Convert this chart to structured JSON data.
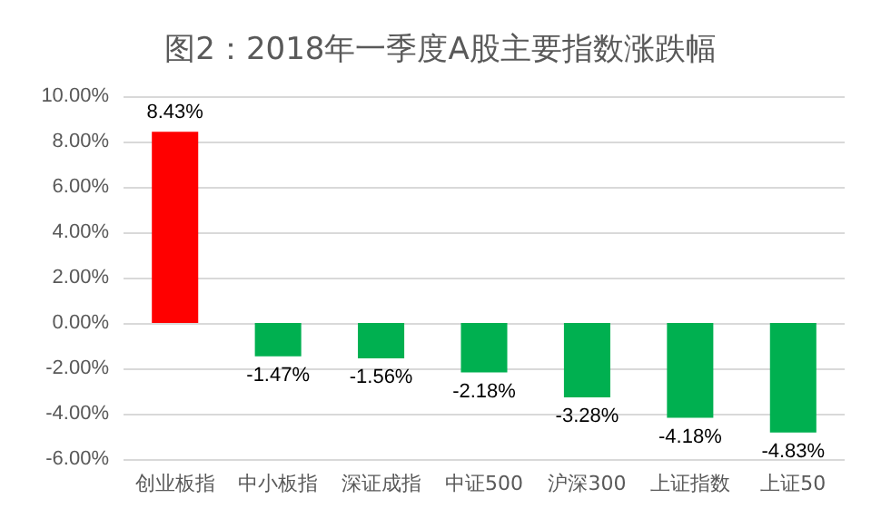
{
  "chart_data": {
    "type": "bar",
    "title": "图2：2018年一季度A股主要指数涨跌幅",
    "categories": [
      "创业板指",
      "中小板指",
      "深证成指",
      "中证500",
      "沪深300",
      "上证指数",
      "上证50"
    ],
    "values": [
      8.43,
      -1.47,
      -1.56,
      -2.18,
      -3.28,
      -4.18,
      -4.83
    ],
    "colors": [
      "#ff0000",
      "#00b050",
      "#00b050",
      "#00b050",
      "#00b050",
      "#00b050",
      "#00b050"
    ],
    "value_labels": [
      "8.43%",
      "-1.47%",
      "-1.56%",
      "-2.18%",
      "-3.28%",
      "-4.18%",
      "-4.83%"
    ],
    "ylim": [
      -6,
      10
    ],
    "yticks": [
      {
        "value": -6,
        "label": "-6.00%"
      },
      {
        "value": -4,
        "label": "-4.00%"
      },
      {
        "value": -2,
        "label": "-2.00%"
      },
      {
        "value": 0,
        "label": "0.00%"
      },
      {
        "value": 2,
        "label": "2.00%"
      },
      {
        "value": 4,
        "label": "4.00%"
      },
      {
        "value": 6,
        "label": "6.00%"
      },
      {
        "value": 8,
        "label": "8.00%"
      },
      {
        "value": 10,
        "label": "10.00%"
      }
    ],
    "grid": "y"
  }
}
